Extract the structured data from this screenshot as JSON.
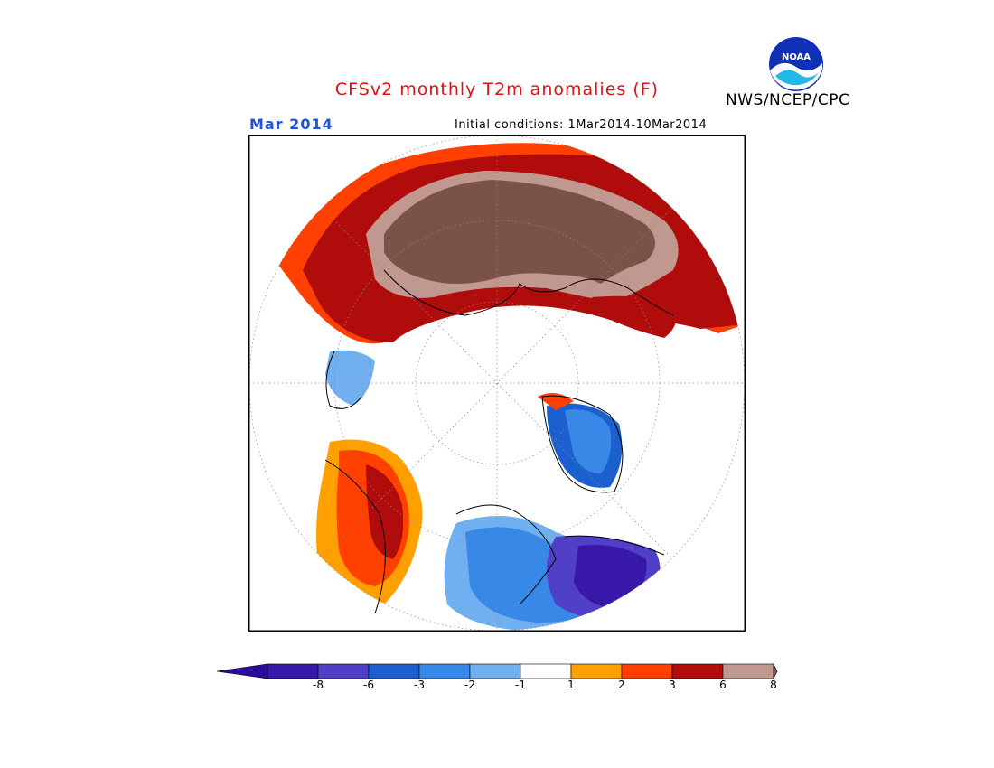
{
  "header": {
    "title": "CFSv2 monthly T2m anomalies (F)",
    "agency": "NWS/NCEP/CPC",
    "month": "Mar 2014",
    "initial_conditions": "Initial conditions: 1Mar2014-10Mar2014",
    "logo_text": "NOAA"
  },
  "map": {
    "projection": "polar-stereographic-north",
    "variable": "T2m anomaly",
    "units": "F",
    "regions": [
      {
        "area": "Northern Eurasia / Siberia",
        "category": ">8"
      },
      {
        "area": "Eurasian Arctic coast",
        "category": "6 to 8"
      },
      {
        "area": "Western Alaska / Bering region",
        "category": "3 to 6"
      },
      {
        "area": "Eastern Canada / Hudson Bay",
        "category": "-8 to -6"
      },
      {
        "area": "Greenland",
        "category": "-6 to -3"
      },
      {
        "area": "Central North America",
        "category": "-3 to -1"
      }
    ]
  },
  "colorbar": {
    "labels": [
      "-8",
      "-6",
      "-3",
      "-2",
      "-1",
      "1",
      "2",
      "3",
      "6",
      "8"
    ],
    "colors": [
      "#3818a8",
      "#5040c8",
      "#1c60d0",
      "#3888e8",
      "#70b0f0",
      "#ffffff",
      "#ffa000",
      "#ff4000",
      "#b00c0c",
      "#c09890",
      "#7a5248"
    ],
    "end_low_color": "#2a0c9c",
    "end_high_color": "#7a5248"
  }
}
